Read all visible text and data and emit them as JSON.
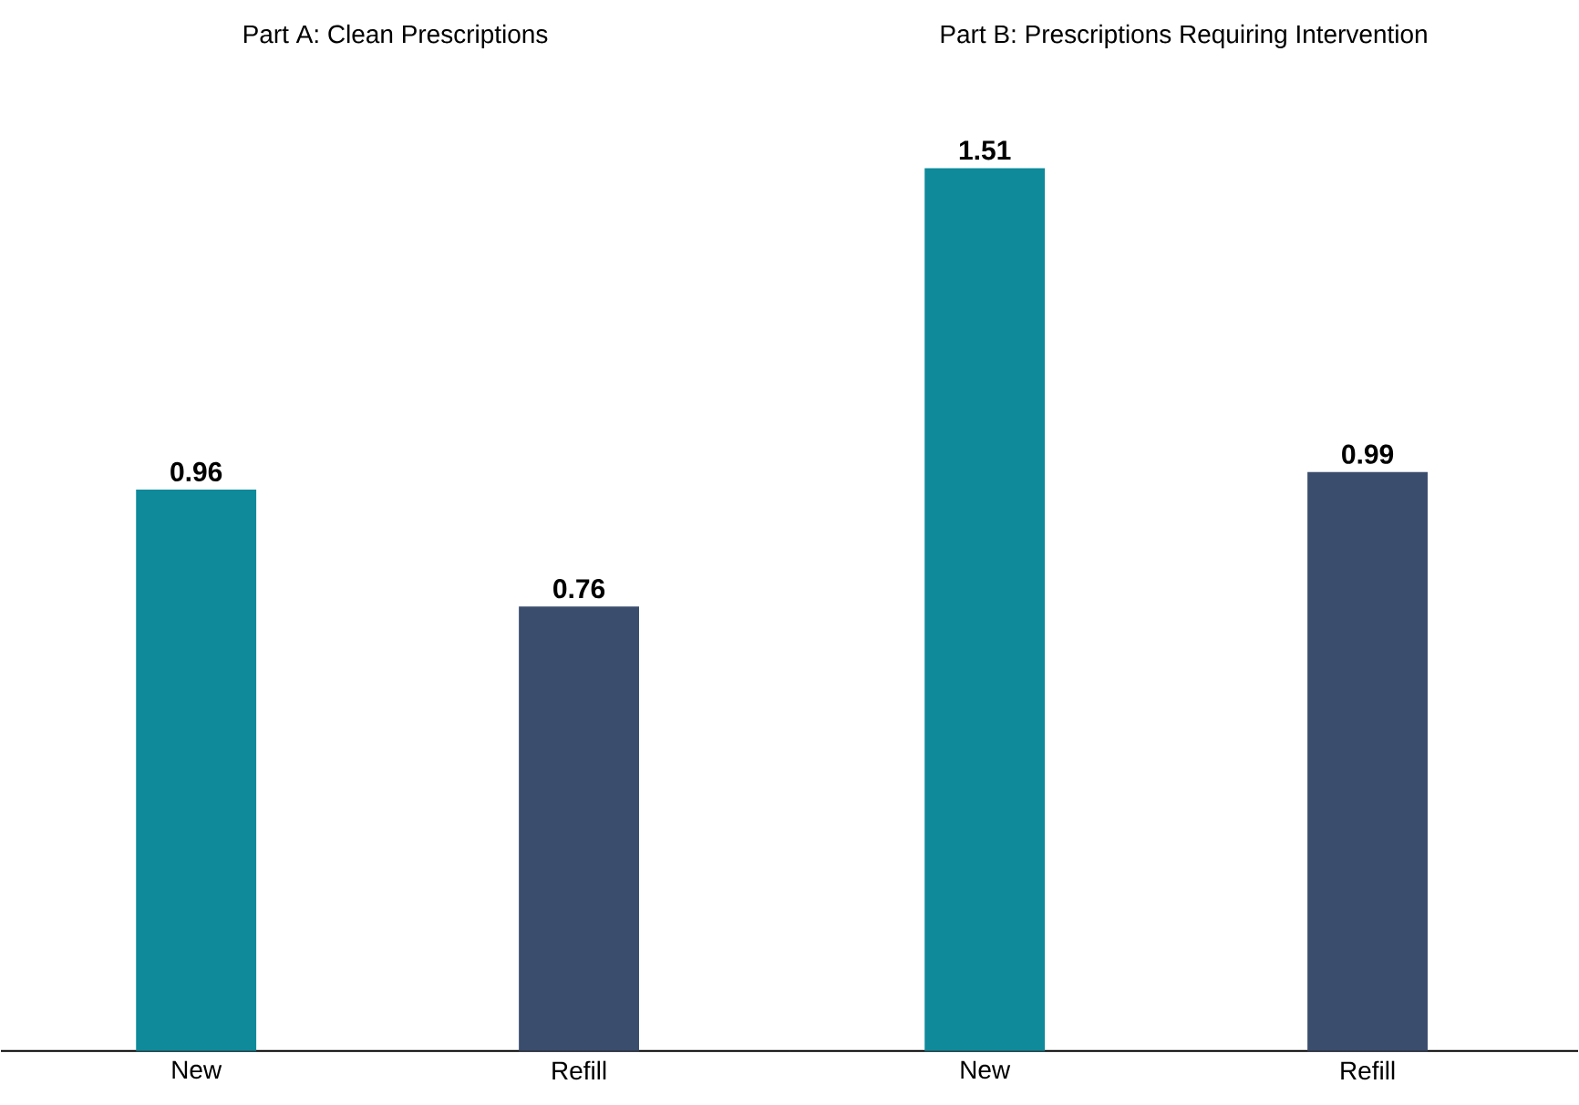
{
  "chart_data": [
    {
      "type": "bar",
      "title": "Part A: Clean Prescriptions",
      "categories": [
        "New",
        "Refill"
      ],
      "values": [
        0.96,
        0.76
      ],
      "colors": [
        "#0e8a9b",
        "#3a4d6d"
      ],
      "data_labels": true
    },
    {
      "type": "bar",
      "title": "Part B: Prescriptions Requiring Intervention",
      "categories": [
        "New",
        "Refill"
      ],
      "values": [
        1.51,
        0.99
      ],
      "colors": [
        "#0e8a9b",
        "#3a4d6d"
      ],
      "data_labels": true
    }
  ]
}
